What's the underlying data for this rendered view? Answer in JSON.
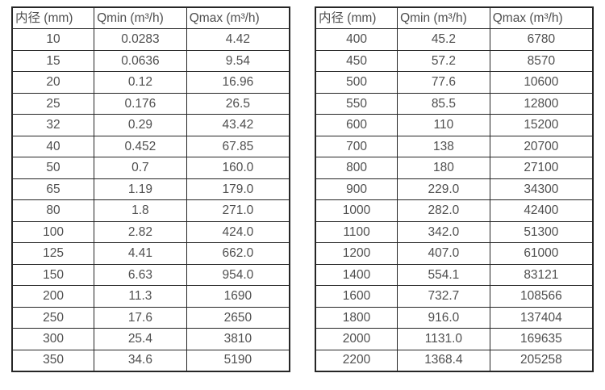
{
  "colors": {
    "background": "#ffffff",
    "table_border": "#262626",
    "text": "#4f4f4f"
  },
  "chart_data": [
    {
      "type": "table",
      "name": "flow-rate-table-small-diameters",
      "headers": [
        "内径 (mm)",
        "Qmin (m³/h)",
        "Qmax (m³/h)"
      ],
      "rows": [
        [
          "10",
          "0.0283",
          "4.42"
        ],
        [
          "15",
          "0.0636",
          "9.54"
        ],
        [
          "20",
          "0.12",
          "16.96"
        ],
        [
          "25",
          "0.176",
          "26.5"
        ],
        [
          "32",
          "0.29",
          "43.42"
        ],
        [
          "40",
          "0.452",
          "67.85"
        ],
        [
          "50",
          "0.7",
          "160.0"
        ],
        [
          "65",
          "1.19",
          "179.0"
        ],
        [
          "80",
          "1.8",
          "271.0"
        ],
        [
          "100",
          "2.82",
          "424.0"
        ],
        [
          "125",
          "4.41",
          "662.0"
        ],
        [
          "150",
          "6.63",
          "954.0"
        ],
        [
          "200",
          "11.3",
          "1690"
        ],
        [
          "250",
          "17.6",
          "2650"
        ],
        [
          "300",
          "25.4",
          "3810"
        ],
        [
          "350",
          "34.6",
          "5190"
        ]
      ]
    },
    {
      "type": "table",
      "name": "flow-rate-table-large-diameters",
      "headers": [
        "内径 (mm)",
        "Qmin (m³/h)",
        "Qmax (m³/h)"
      ],
      "rows": [
        [
          "400",
          "45.2",
          "6780"
        ],
        [
          "450",
          "57.2",
          "8570"
        ],
        [
          "500",
          "77.6",
          "10600"
        ],
        [
          "550",
          "85.5",
          "12800"
        ],
        [
          "600",
          "110",
          "15200"
        ],
        [
          "700",
          "138",
          "20700"
        ],
        [
          "800",
          "180",
          "27100"
        ],
        [
          "900",
          "229.0",
          "34300"
        ],
        [
          "1000",
          "282.0",
          "42400"
        ],
        [
          "1100",
          "342.0",
          "51300"
        ],
        [
          "1200",
          "407.0",
          "61000"
        ],
        [
          "1400",
          "554.1",
          "83121"
        ],
        [
          "1600",
          "732.7",
          "108566"
        ],
        [
          "1800",
          "916.0",
          "137404"
        ],
        [
          "2000",
          "1131.0",
          "169635"
        ],
        [
          "2200",
          "1368.4",
          "205258"
        ]
      ]
    }
  ]
}
